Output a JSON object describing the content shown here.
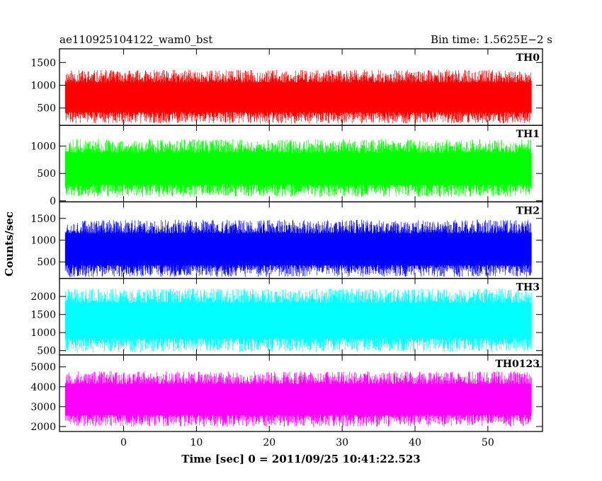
{
  "header": {
    "obs_id": "ae110925104122_wam0_bst",
    "bin_time": "Bin time: 1.5625E−2 s"
  },
  "chart_data": {
    "type": "line",
    "ylabel": "Counts/sec",
    "xlabel": "Time [sec] 0 = 2011/09/25 10:41:22.523",
    "xlim": [
      -8.8,
      57.5
    ],
    "data_xrange": [
      -8.0,
      56.0
    ],
    "x_ticks": [
      0,
      10,
      20,
      30,
      40,
      50
    ],
    "grid": false,
    "panels": [
      {
        "name": "TH0",
        "color": "#ff0000",
        "ylim": [
          120,
          1800
        ],
        "y_ticks": [
          500,
          1000,
          1500
        ],
        "baseline": 720,
        "amp_low": 560,
        "amp_high": 620,
        "noise_seed": 11
      },
      {
        "name": "TH1",
        "color": "#00ff00",
        "ylim": [
          -20,
          1380
        ],
        "y_ticks": [
          0,
          500,
          1000
        ],
        "baseline": 570,
        "amp_low": 500,
        "amp_high": 560,
        "noise_seed": 23
      },
      {
        "name": "TH2",
        "color": "#0000ff",
        "ylim": [
          120,
          1880
        ],
        "y_ticks": [
          500,
          1000,
          1500
        ],
        "baseline": 770,
        "amp_low": 620,
        "amp_high": 700,
        "noise_seed": 37
      },
      {
        "name": "TH3",
        "color": "#00ffff",
        "ylim": [
          380,
          2500
        ],
        "y_ticks": [
          500,
          1000,
          1500,
          2000
        ],
        "baseline": 1320,
        "amp_low": 860,
        "amp_high": 900,
        "noise_seed": 41
      },
      {
        "name": "TH0123",
        "color": "#ff00ff",
        "ylim": [
          1750,
          5600
        ],
        "y_ticks": [
          2000,
          3000,
          4000,
          5000
        ],
        "baseline": 3330,
        "amp_low": 1350,
        "amp_high": 1450,
        "noise_seed": 53
      }
    ]
  }
}
